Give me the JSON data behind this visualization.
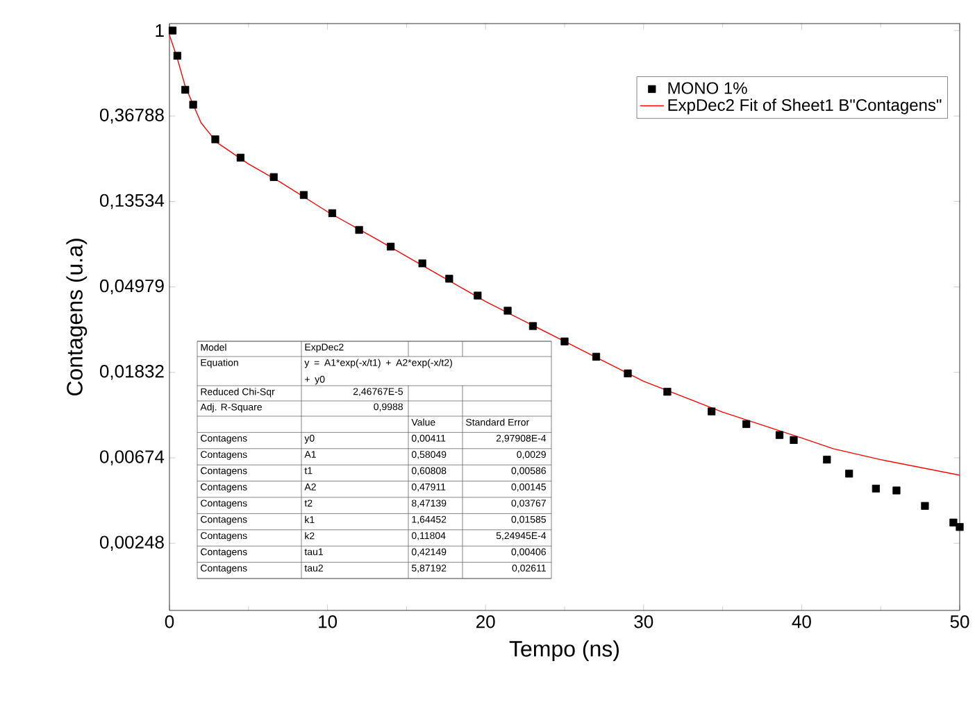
{
  "chart_data": {
    "type": "line",
    "xlabel": "Tempo (ns)",
    "ylabel": "Contagens (u.a)",
    "log": "y",
    "legend": "top right",
    "xlim": [
      0,
      50
    ],
    "xticks": [
      0,
      10,
      20,
      30,
      40,
      50
    ],
    "ylim": [
      0.00113,
      1.085
    ],
    "yticks": [
      1,
      {
        "value": 0.36788,
        "label": "0,36788"
      },
      {
        "value": 0.13534,
        "label": "0,13534"
      },
      {
        "value": 0.04979,
        "label": "0,04979"
      },
      {
        "value": 0.01832,
        "label": "0,01832"
      },
      {
        "value": 0.00674,
        "label": "0,00674"
      },
      {
        "value": 0.00248,
        "label": "0,00248"
      }
    ],
    "series": [
      {
        "name": "MONO 1%",
        "type": "scatter",
        "marker": "square",
        "color": "#000000",
        "x": [
          0.2,
          0.5,
          1.0,
          1.5,
          2.9,
          4.5,
          6.6,
          8.5,
          10.3,
          12,
          14,
          16,
          17.7,
          19.5,
          21.4,
          23,
          25,
          27,
          29,
          31.5,
          34.3,
          36.5,
          38.6,
          39.5,
          41.6,
          43,
          44.7,
          46,
          47.8,
          49.6,
          50
        ],
        "values": [
          1.0,
          0.745,
          0.5,
          0.42,
          0.28,
          0.226,
          0.18,
          0.146,
          0.118,
          0.097,
          0.0798,
          0.0656,
          0.0548,
          0.045,
          0.0377,
          0.0315,
          0.0263,
          0.022,
          0.0181,
          0.0146,
          0.0116,
          0.01,
          0.0088,
          0.0083,
          0.0066,
          0.0056,
          0.0047,
          0.0046,
          0.00384,
          0.00316,
          0.003
        ]
      },
      {
        "name": "ExpDec2 Fit of Sheet1 B\"Contagens\"",
        "color": "#ff0000",
        "x": [
          0,
          0.5,
          1,
          2,
          3,
          5,
          7,
          10,
          13,
          16,
          20,
          25,
          30,
          35,
          40,
          42,
          45,
          50
        ],
        "values": [
          0.95,
          0.72,
          0.52,
          0.34,
          0.27,
          0.21,
          0.17,
          0.12,
          0.088,
          0.064,
          0.042,
          0.0263,
          0.0165,
          0.0115,
          0.0085,
          0.0075,
          0.0066,
          0.0055
        ]
      }
    ],
    "annotations": [
      "Model",
      "ExpDec2",
      "Equation",
      "y = A1*exp(-x/t1) + A2*exp(-x/t2) + y0",
      "Reduced Chi-Sqr",
      "2,46767E-5",
      "Adj. R-Square",
      "0,9988",
      "Value",
      "Standard Error",
      "Contagens",
      "y0",
      "0,00411",
      "2,97908E-4",
      "Contagens",
      "A1",
      "0,58049",
      "0,0029",
      "Contagens",
      "t1",
      "0,60808",
      "0,00586",
      "Contagens",
      "A2",
      "0,47911",
      "0,00145",
      "Contagens",
      "t2",
      "8,47139",
      "0,03767",
      "Contagens",
      "k1",
      "1,64452",
      "0,01585",
      "Contagens",
      "k2",
      "0,11804",
      "5,24945E-4",
      "Contagens",
      "tau1",
      "0,42149",
      "0,00406",
      "Contagens",
      "tau2",
      "5,87192",
      "0,02611"
    ]
  }
}
